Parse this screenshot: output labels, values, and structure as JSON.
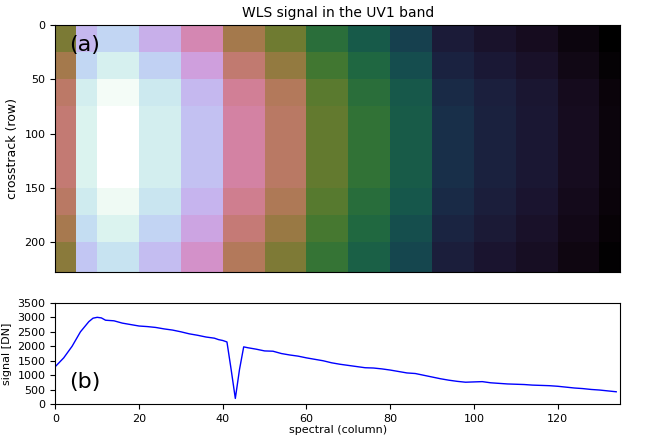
{
  "chart_data": [
    {
      "type": "heatmap",
      "title": "WLS signal in the UV1 band",
      "y_label": "crosstrack (row)",
      "annotation": "(a)",
      "x_edges": [
        0,
        5,
        10,
        20,
        30,
        40,
        50,
        60,
        70,
        80,
        90,
        100,
        110,
        120,
        130,
        135
      ],
      "y_edges": [
        0,
        25,
        50,
        75,
        100,
        125,
        150,
        175,
        200,
        227
      ],
      "cells": [
        [
          1530,
          2300,
          2470,
          2250,
          2000,
          1660,
          1490,
          1230,
          1070,
          920,
          700,
          630,
          570,
          480,
          400
        ],
        [
          1660,
          2480,
          2670,
          2440,
          2160,
          1790,
          1610,
          1330,
          1160,
          990,
          750,
          680,
          620,
          520,
          430
        ],
        [
          1760,
          2650,
          2840,
          2600,
          2300,
          1910,
          1720,
          1420,
          1230,
          1060,
          800,
          730,
          660,
          560,
          460
        ],
        [
          1800,
          2700,
          2900,
          2650,
          2350,
          1950,
          1750,
          1450,
          1260,
          1080,
          820,
          740,
          670,
          570,
          470
        ],
        [
          1800,
          2700,
          2900,
          2650,
          2350,
          1950,
          1750,
          1450,
          1260,
          1080,
          820,
          740,
          670,
          570,
          470
        ],
        [
          1800,
          2700,
          2900,
          2650,
          2350,
          1950,
          1750,
          1450,
          1260,
          1080,
          820,
          740,
          670,
          570,
          470
        ],
        [
          1750,
          2620,
          2810,
          2570,
          2280,
          1890,
          1700,
          1410,
          1220,
          1050,
          800,
          720,
          650,
          550,
          460
        ],
        [
          1670,
          2510,
          2700,
          2460,
          2190,
          1810,
          1630,
          1350,
          1170,
          1000,
          760,
          690,
          620,
          530,
          440
        ],
        [
          1580,
          2380,
          2550,
          2330,
          2070,
          1720,
          1540,
          1280,
          1110,
          950,
          720,
          650,
          590,
          500,
          410
        ]
      ],
      "xlim": [
        0,
        135
      ],
      "ylim": [
        227,
        0
      ],
      "yticks": [
        0,
        50,
        100,
        150,
        200
      ],
      "tick_labels": "y"
    },
    {
      "type": "line",
      "x_label": "spectral (column)",
      "y_label": "signal [DN]",
      "annotation": "(b)",
      "color": "#0000ff",
      "x": [
        0,
        2,
        4,
        6,
        8,
        9,
        10,
        11,
        12,
        14,
        16,
        18,
        20,
        22,
        24,
        26,
        28,
        30,
        32,
        34,
        36,
        38,
        39,
        40,
        41,
        42,
        43,
        44,
        45,
        46,
        48,
        50,
        52,
        54,
        56,
        58,
        60,
        62,
        64,
        66,
        68,
        70,
        72,
        74,
        76,
        78,
        80,
        82,
        84,
        86,
        88,
        90,
        92,
        94,
        96,
        98,
        100,
        102,
        104,
        106,
        108,
        110,
        112,
        114,
        116,
        118,
        120,
        122,
        124,
        126,
        128,
        130,
        132,
        134
      ],
      "values": [
        1300,
        1600,
        2000,
        2500,
        2850,
        2970,
        3000,
        2980,
        2900,
        2880,
        2800,
        2750,
        2700,
        2680,
        2650,
        2600,
        2560,
        2500,
        2430,
        2380,
        2320,
        2280,
        2230,
        2200,
        2150,
        1200,
        200,
        1200,
        1980,
        1950,
        1900,
        1840,
        1830,
        1750,
        1700,
        1660,
        1600,
        1550,
        1500,
        1430,
        1380,
        1340,
        1300,
        1260,
        1250,
        1220,
        1180,
        1130,
        1080,
        1060,
        1000,
        940,
        880,
        830,
        790,
        760,
        770,
        780,
        740,
        720,
        700,
        690,
        680,
        660,
        650,
        640,
        620,
        590,
        560,
        540,
        510,
        490,
        460,
        430
      ],
      "xlim": [
        0,
        135
      ],
      "ylim": [
        0,
        3500
      ],
      "xticks": [
        0,
        20,
        40,
        60,
        80,
        100,
        120
      ],
      "yticks": [
        0,
        500,
        1000,
        1500,
        2000,
        2500,
        3000,
        3500
      ]
    }
  ]
}
